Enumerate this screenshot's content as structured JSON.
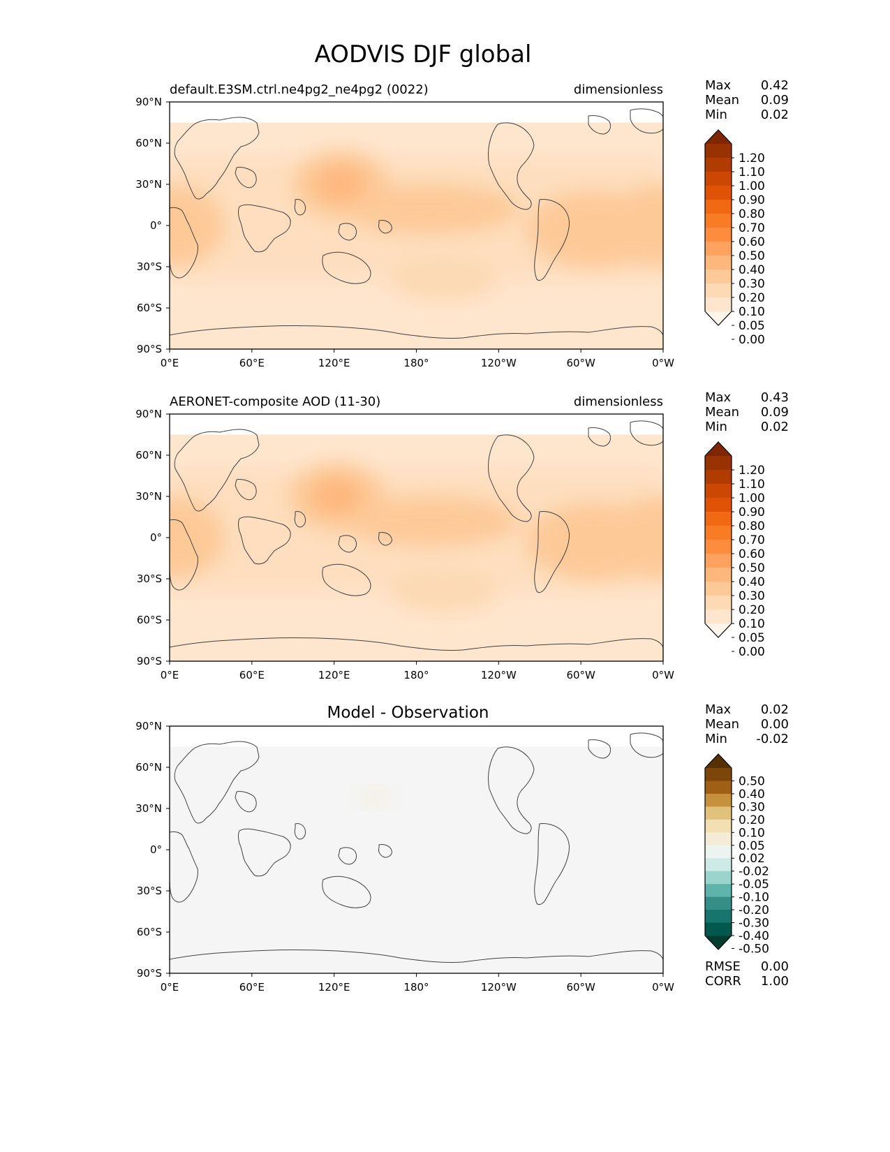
{
  "figure_title": "AODVIS DJF global",
  "colors": {
    "seq_ramp": [
      "#fff5eb",
      "#fee6ce",
      "#fdd9b4",
      "#fdc997",
      "#fdb67c",
      "#fda35f",
      "#fd8d3c",
      "#f87b26",
      "#f16913",
      "#e05307",
      "#cc4702",
      "#b13c02",
      "#983202",
      "#7f2704"
    ],
    "div_ramp": [
      "#003c30",
      "#01594e",
      "#16756c",
      "#358f88",
      "#5eb3aa",
      "#9bd4cc",
      "#cdeae6",
      "#ecf4f2",
      "#f4ecd6",
      "#f2dfb2",
      "#e0c27c",
      "#c5913d",
      "#9f5f14",
      "#7c460b",
      "#543005"
    ],
    "zero_diff": "#f4f5f4",
    "coast": "#404040"
  },
  "chart_data": [
    {
      "type": "heatmap",
      "title": "default.E3SM.ctrl.ne4pg2_ne4pg2 (0022)",
      "units": "dimensionless",
      "stats": [
        {
          "label": "Max",
          "value": "0.42"
        },
        {
          "label": "Mean",
          "value": "0.09"
        },
        {
          "label": "Min",
          "value": "0.02"
        }
      ],
      "colorbar": {
        "levels": [
          "1.20",
          "1.10",
          "1.00",
          "0.90",
          "0.80",
          "0.70",
          "0.60",
          "0.50",
          "0.40",
          "0.30",
          "0.20",
          "0.10",
          "0.05",
          "0.00"
        ],
        "extend": "both",
        "palette": "seq_ramp"
      },
      "x_ticks": [
        "0°E",
        "60°E",
        "120°E",
        "180°",
        "120°W",
        "60°W",
        "0°W"
      ],
      "y_ticks": [
        "90°N",
        "60°N",
        "30°N",
        "0°",
        "30°S",
        "60°S",
        "90°S"
      ],
      "xlim": [
        0,
        360
      ],
      "ylim": [
        -90,
        90
      ],
      "field": [
        {
          "lon": 0,
          "lat": 0,
          "value": 0.12,
          "rx": 40,
          "ry": 30
        },
        {
          "lon": 18,
          "lat": 5,
          "value": 0.16,
          "rx": 20,
          "ry": 15
        },
        {
          "lon": 125,
          "lat": 30,
          "value": 0.17,
          "rx": 35,
          "ry": 25
        },
        {
          "lon": 125,
          "lat": 30,
          "value": 0.25,
          "rx": 18,
          "ry": 13
        },
        {
          "lon": 190,
          "lat": 12,
          "value": 0.11,
          "rx": 65,
          "ry": 18
        },
        {
          "lon": 310,
          "lat": -3,
          "value": 0.12,
          "rx": 50,
          "ry": 28
        },
        {
          "lon": 340,
          "lat": 0,
          "value": 0.15,
          "rx": 25,
          "ry": 18
        },
        {
          "lon": 200,
          "lat": -40,
          "value": 0.05,
          "rx": 40,
          "ry": 15
        }
      ],
      "show_rmse": false
    },
    {
      "type": "heatmap",
      "title": "AERONET-composite AOD (11-30)",
      "units": "dimensionless",
      "stats": [
        {
          "label": "Max",
          "value": "0.43"
        },
        {
          "label": "Mean",
          "value": "0.09"
        },
        {
          "label": "Min",
          "value": "0.02"
        }
      ],
      "colorbar": {
        "levels": [
          "1.20",
          "1.10",
          "1.00",
          "0.90",
          "0.80",
          "0.70",
          "0.60",
          "0.50",
          "0.40",
          "0.30",
          "0.20",
          "0.10",
          "0.05",
          "0.00"
        ],
        "extend": "both",
        "palette": "seq_ramp"
      },
      "x_ticks": [
        "0°E",
        "60°E",
        "120°E",
        "180°",
        "120°W",
        "60°W",
        "0°W"
      ],
      "y_ticks": [
        "90°N",
        "60°N",
        "30°N",
        "0°",
        "30°S",
        "60°S",
        "90°S"
      ],
      "xlim": [
        0,
        360
      ],
      "ylim": [
        -90,
        90
      ],
      "field": [
        {
          "lon": 0,
          "lat": 0,
          "value": 0.12,
          "rx": 40,
          "ry": 30
        },
        {
          "lon": 18,
          "lat": 5,
          "value": 0.16,
          "rx": 20,
          "ry": 15
        },
        {
          "lon": 122,
          "lat": 30,
          "value": 0.17,
          "rx": 35,
          "ry": 25
        },
        {
          "lon": 122,
          "lat": 30,
          "value": 0.25,
          "rx": 18,
          "ry": 13
        },
        {
          "lon": 190,
          "lat": 12,
          "value": 0.11,
          "rx": 65,
          "ry": 18
        },
        {
          "lon": 310,
          "lat": -3,
          "value": 0.12,
          "rx": 50,
          "ry": 28
        },
        {
          "lon": 340,
          "lat": 0,
          "value": 0.15,
          "rx": 25,
          "ry": 18
        },
        {
          "lon": 200,
          "lat": -40,
          "value": 0.05,
          "rx": 40,
          "ry": 15
        }
      ],
      "show_rmse": false
    },
    {
      "type": "heatmap",
      "title": "Model - Observation",
      "units": "",
      "stats": [
        {
          "label": "Max",
          "value": "0.02"
        },
        {
          "label": "Mean",
          "value": "0.00"
        },
        {
          "label": "Min",
          "value": "-0.02"
        }
      ],
      "colorbar": {
        "levels": [
          "0.50",
          "0.40",
          "0.30",
          "0.20",
          "0.10",
          "0.05",
          "0.02",
          "-0.02",
          "-0.05",
          "-0.10",
          "-0.20",
          "-0.30",
          "-0.40",
          "-0.50"
        ],
        "extend": "both",
        "palette": "div_ramp"
      },
      "x_ticks": [
        "0°E",
        "60°E",
        "120°E",
        "180°",
        "120°W",
        "60°W",
        "0°W"
      ],
      "y_ticks": [
        "90°N",
        "60°N",
        "30°N",
        "0°",
        "30°S",
        "60°S",
        "90°S"
      ],
      "xlim": [
        0,
        360
      ],
      "ylim": [
        -90,
        90
      ],
      "field": [
        {
          "lon": 150,
          "lat": 38,
          "value": 0.03,
          "rx": 10,
          "ry": 5
        }
      ],
      "rmse": {
        "label": "RMSE",
        "value": "0.00"
      },
      "corr": {
        "label": "CORR",
        "value": "1.00"
      },
      "show_rmse": true
    }
  ]
}
